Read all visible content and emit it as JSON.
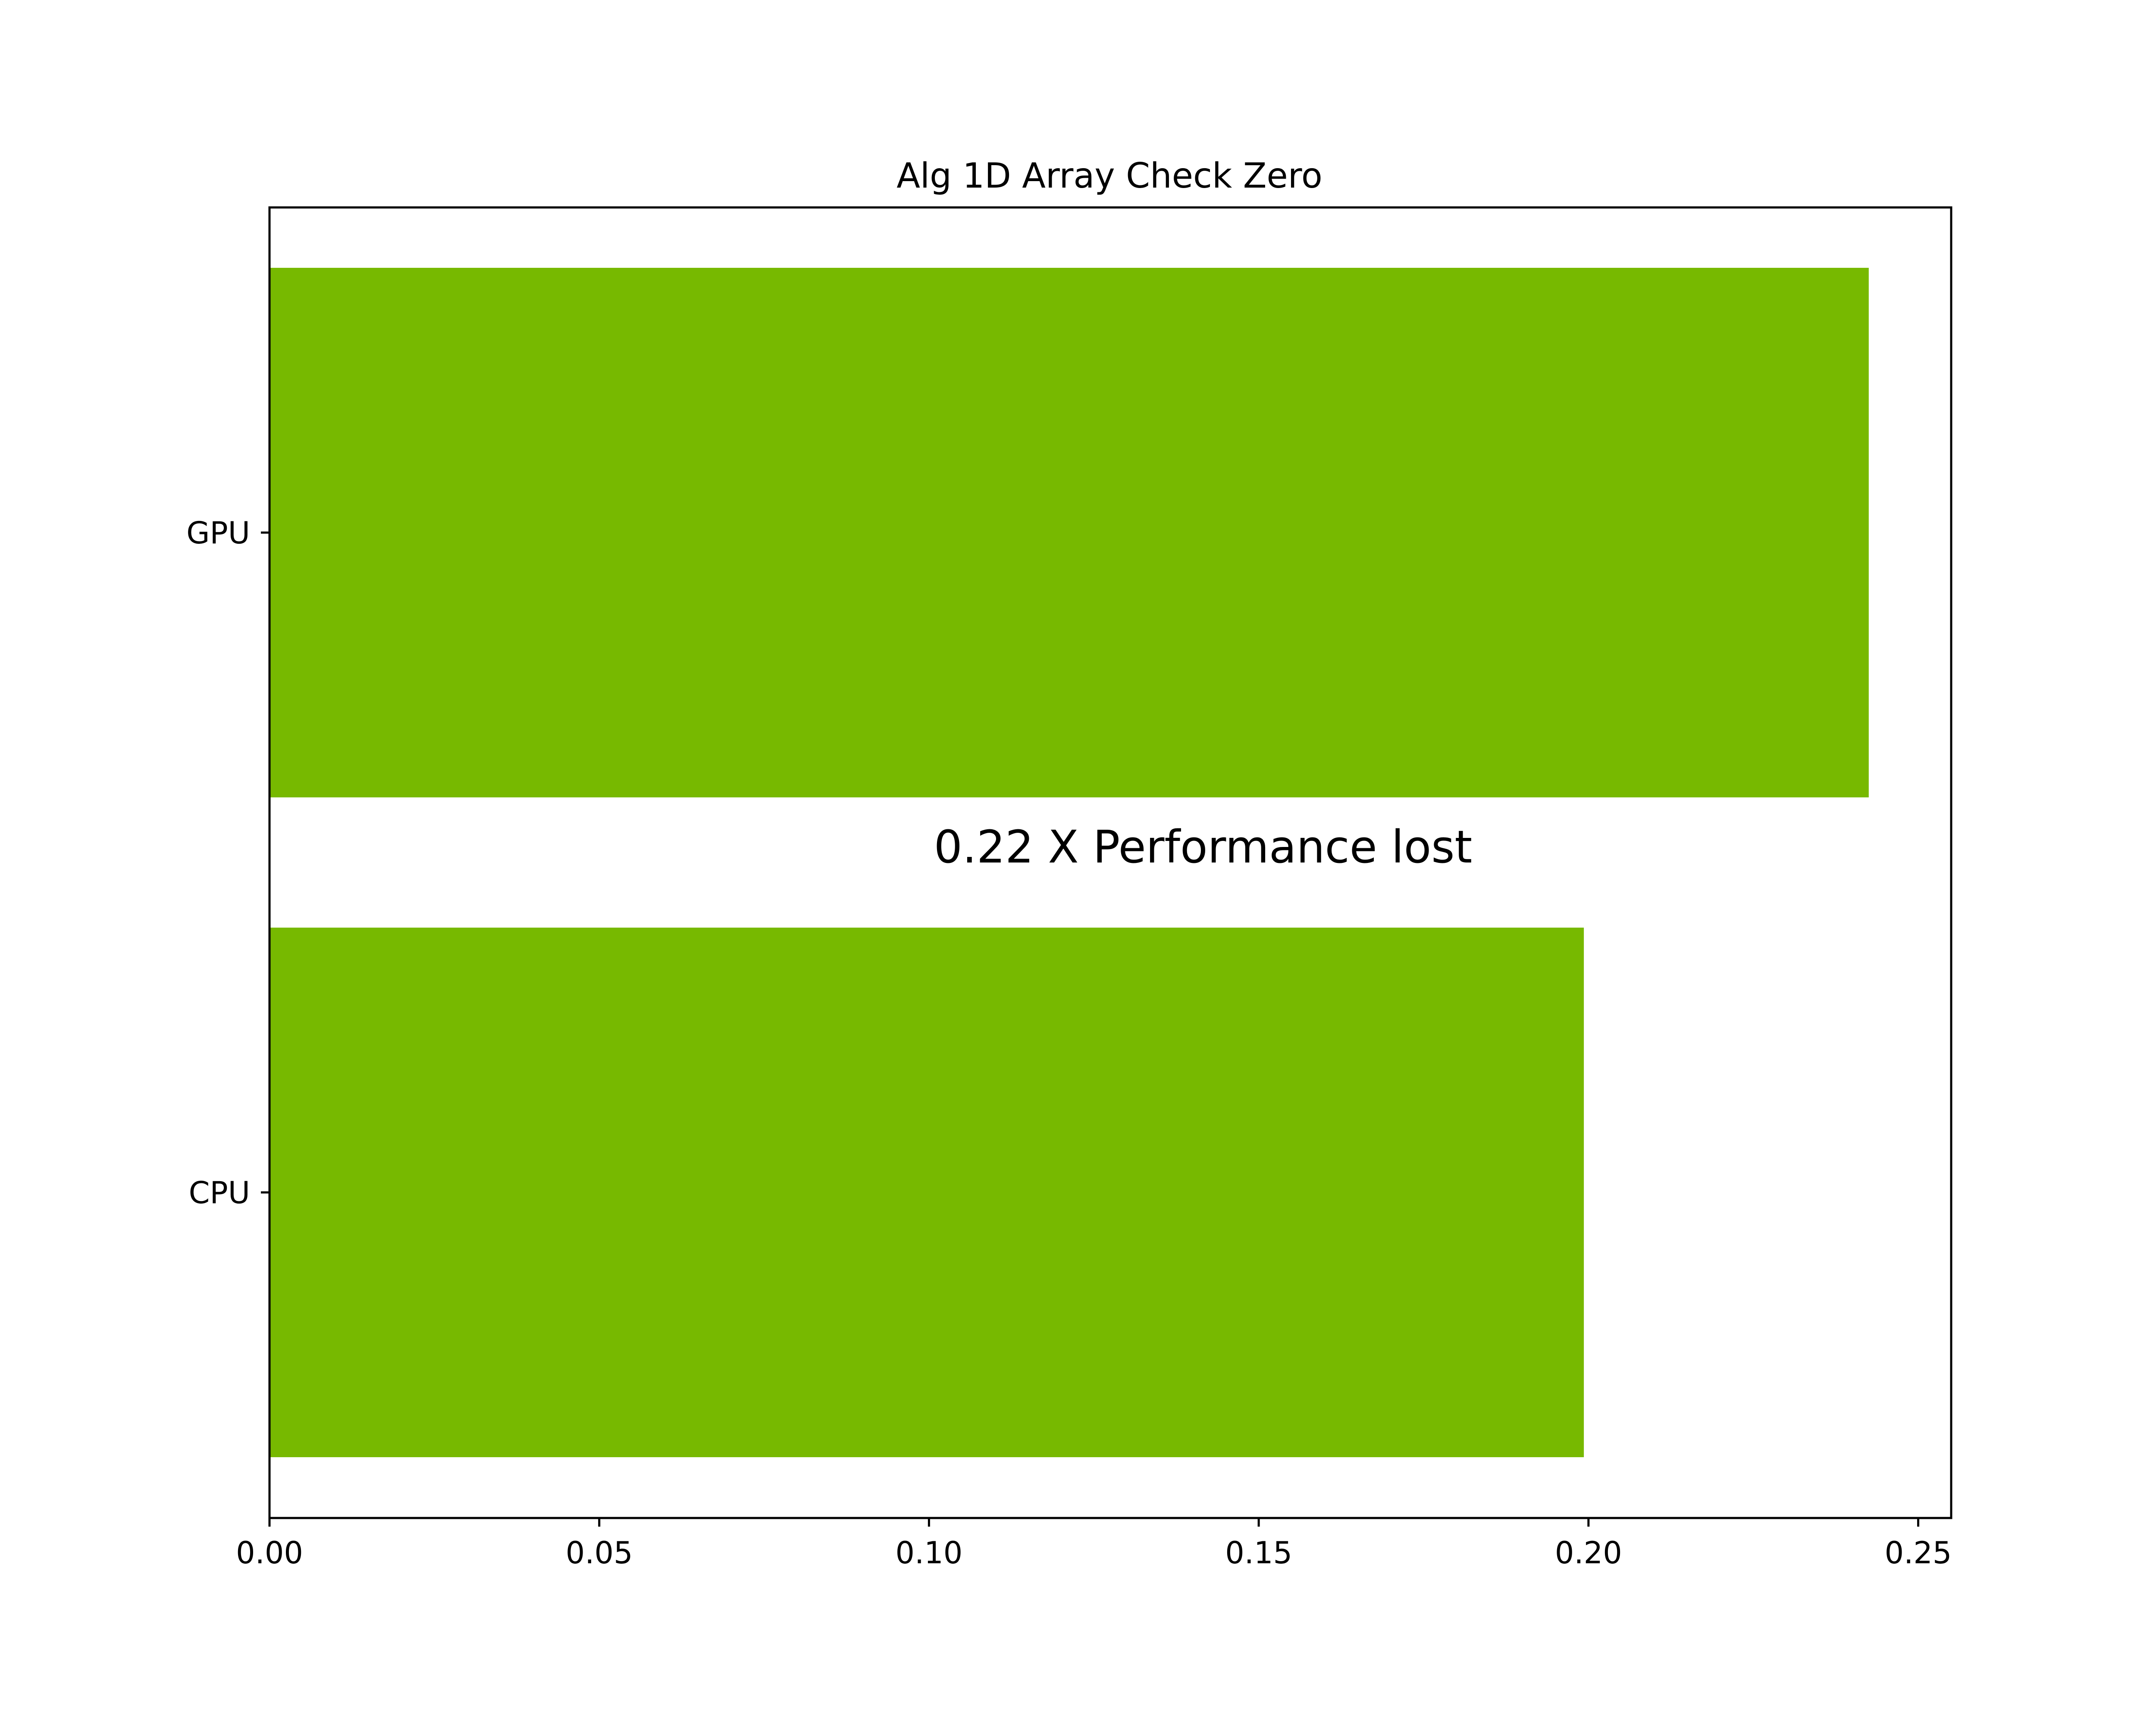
{
  "chart_data": {
    "type": "bar",
    "orientation": "horizontal",
    "title": "Alg 1D Array Check Zero",
    "xlabel": "",
    "ylabel": "",
    "categories": [
      "GPU",
      "CPU"
    ],
    "values": [
      0.2425,
      0.1993
    ],
    "xlim": [
      0,
      0.255
    ],
    "xticks": [
      "0.00",
      "0.05",
      "0.10",
      "0.15",
      "0.20",
      "0.25"
    ],
    "xtick_values": [
      0,
      0.05,
      0.1,
      0.15,
      0.2,
      0.25
    ],
    "grid": false,
    "bar_color": "#77b900",
    "annotation": "0.22 X Performance lost"
  }
}
